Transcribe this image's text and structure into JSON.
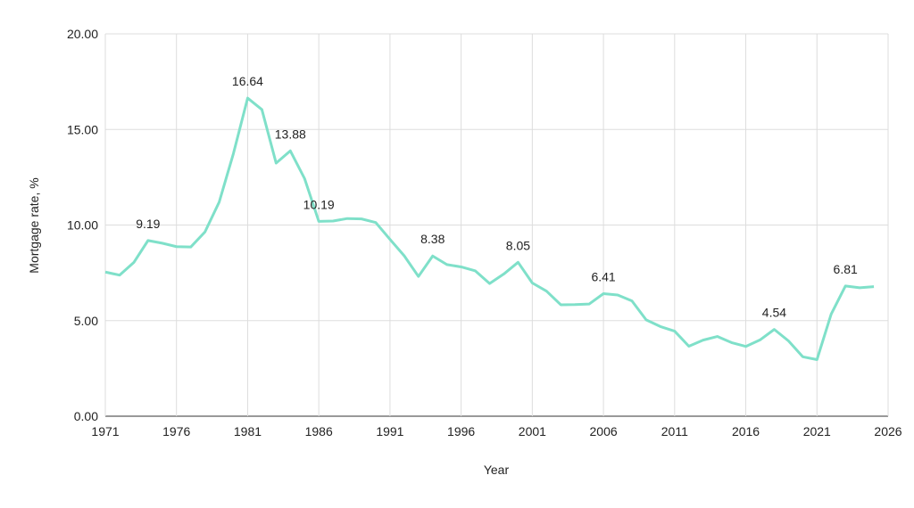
{
  "chart_data": {
    "type": "line",
    "title": "",
    "xlabel": "Year",
    "ylabel": "Mortgage rate, %",
    "xlim": [
      1971,
      2026
    ],
    "ylim": [
      0,
      20
    ],
    "x_ticks": [
      "1971",
      "1976",
      "1981",
      "1986",
      "1991",
      "1996",
      "2001",
      "2006",
      "2011",
      "2016",
      "2021",
      "2026"
    ],
    "y_ticks": [
      "0.00",
      "5.00",
      "10.00",
      "15.00",
      "20.00"
    ],
    "grid": true,
    "legend": "none",
    "line_color": "#7fe0c9",
    "x": [
      1971,
      1972,
      1973,
      1974,
      1975,
      1976,
      1977,
      1978,
      1979,
      1980,
      1981,
      1982,
      1983,
      1984,
      1985,
      1986,
      1987,
      1988,
      1989,
      1990,
      1991,
      1992,
      1993,
      1994,
      1995,
      1996,
      1997,
      1998,
      1999,
      2000,
      2001,
      2002,
      2003,
      2004,
      2005,
      2006,
      2007,
      2008,
      2009,
      2010,
      2011,
      2012,
      2013,
      2014,
      2015,
      2016,
      2017,
      2018,
      2019,
      2020,
      2021,
      2022,
      2023,
      2024,
      2025
    ],
    "values": [
      7.54,
      7.38,
      8.04,
      9.19,
      9.05,
      8.87,
      8.85,
      9.64,
      11.2,
      13.74,
      16.64,
      16.04,
      13.24,
      13.88,
      12.43,
      10.19,
      10.21,
      10.34,
      10.32,
      10.13,
      9.25,
      8.39,
      7.31,
      8.38,
      7.93,
      7.81,
      7.6,
      6.94,
      7.44,
      8.05,
      6.97,
      6.54,
      5.83,
      5.84,
      5.87,
      6.41,
      6.34,
      6.03,
      5.04,
      4.69,
      4.45,
      3.66,
      3.98,
      4.17,
      3.85,
      3.65,
      3.99,
      4.54,
      3.94,
      3.11,
      2.96,
      5.34,
      6.81,
      6.72,
      6.78
    ],
    "data_labels": [
      {
        "x": 1974,
        "text": "9.19"
      },
      {
        "x": 1981,
        "text": "16.64"
      },
      {
        "x": 1984,
        "text": "13.88"
      },
      {
        "x": 1986,
        "text": "10.19"
      },
      {
        "x": 1994,
        "text": "8.38"
      },
      {
        "x": 2000,
        "text": "8.05"
      },
      {
        "x": 2006,
        "text": "6.41"
      },
      {
        "x": 2018,
        "text": "4.54"
      },
      {
        "x": 2023,
        "text": "6.81"
      }
    ]
  }
}
